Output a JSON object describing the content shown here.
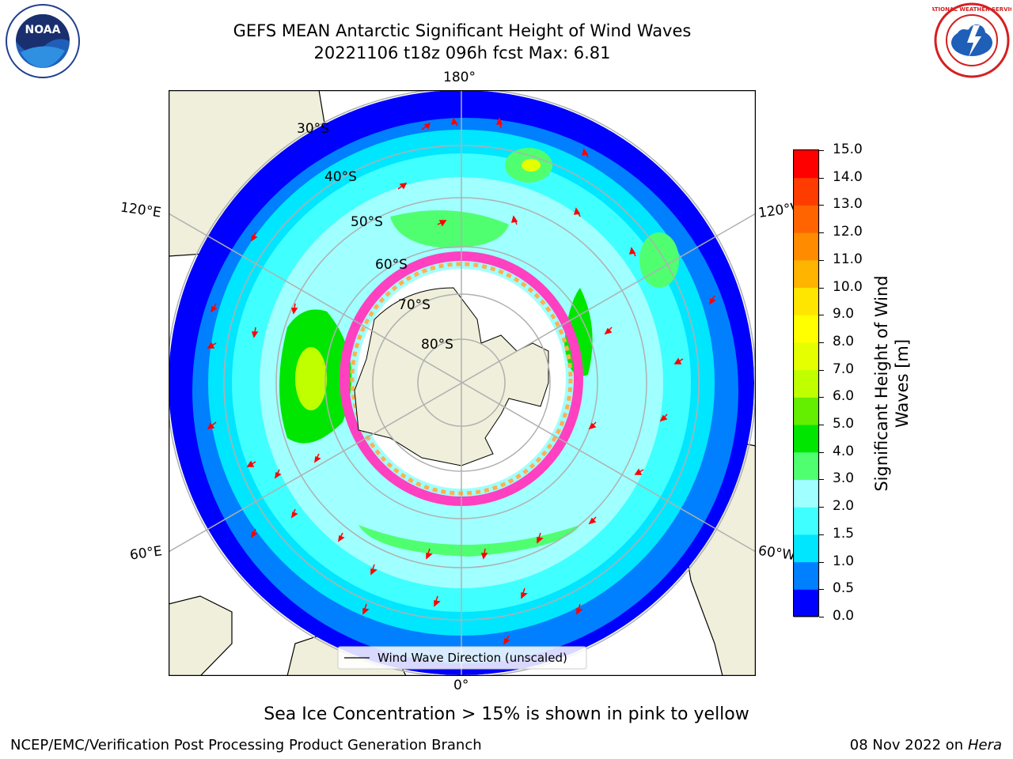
{
  "title": {
    "line1": "GEFS MEAN Antarctic Significant Height of Wind Waves",
    "line2": "20221106 t18z 096h fcst   Max: 6.81"
  },
  "map": {
    "projection": "south polar stereographic",
    "latitude_labels": [
      "30°S",
      "40°S",
      "50°S",
      "60°S",
      "70°S",
      "80°S"
    ],
    "longitude_labels": {
      "top": "180°",
      "bottom": "0°",
      "upper_left": "120°E",
      "upper_right": "120°W",
      "lower_left": "60°E",
      "lower_right": "60°W"
    },
    "legend": "Wind Wave Direction (unscaled)",
    "colors": {
      "land": "#efefdb",
      "ocean_missing": "#ffffff",
      "arrow": "#ff0000",
      "grid": "#b0b0b0"
    }
  },
  "colorbar": {
    "label_line1": "Significant Height of Wind",
    "label_line2": "Waves [m]",
    "ticks": [
      "0.0",
      "0.5",
      "1.0",
      "1.5",
      "2.0",
      "3.0",
      "4.0",
      "5.0",
      "6.0",
      "7.0",
      "8.0",
      "9.0",
      "10.0",
      "11.0",
      "12.0",
      "13.0",
      "14.0",
      "15.0"
    ],
    "colors": [
      "#0000ff",
      "#0080ff",
      "#00e6ff",
      "#40ffff",
      "#a0ffff",
      "#50ff70",
      "#00e600",
      "#64ee00",
      "#c0ff00",
      "#e6ff00",
      "#ffff00",
      "#ffe600",
      "#ffb400",
      "#ff8c00",
      "#ff6400",
      "#ff3c00",
      "#ff0000"
    ]
  },
  "caption": "Sea Ice Concentration > 15% is shown in pink to yellow",
  "footer": {
    "left": "NCEP/EMC/Verification Post Processing Product Generation Branch",
    "right_date": "08 Nov 2022 on",
    "right_host": "Hera"
  },
  "logos": {
    "left": "NOAA",
    "right": "NATIONAL WEATHER SERVICE"
  }
}
